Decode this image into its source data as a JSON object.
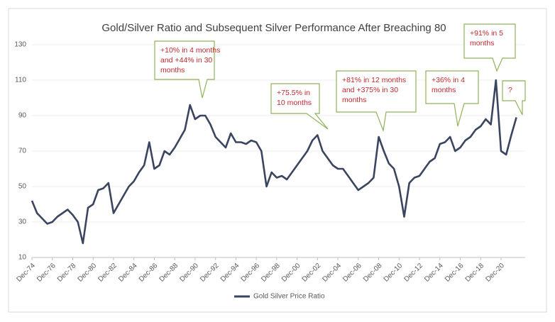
{
  "chart_data": {
    "type": "line",
    "title": "Gold/Silver Ratio and Subsequent Silver Performance After Breaching 80",
    "categories": [
      "Dec-74",
      null,
      null,
      null,
      "Dec-76",
      null,
      null,
      null,
      "Dec-78",
      null,
      null,
      null,
      "Dec-80",
      null,
      null,
      null,
      "Dec-82",
      null,
      null,
      null,
      "Dec-84",
      null,
      null,
      null,
      "Dec-86",
      null,
      null,
      null,
      "Dec-88",
      null,
      null,
      null,
      "Dec-90",
      null,
      null,
      null,
      "Dec-92",
      null,
      null,
      null,
      "Dec-94",
      null,
      null,
      null,
      "Dec-96",
      null,
      null,
      null,
      "Dec-98",
      null,
      null,
      null,
      "Dec-00",
      null,
      null,
      null,
      "Dec-02",
      null,
      null,
      null,
      "Dec-04",
      null,
      null,
      null,
      "Dec-06",
      null,
      null,
      null,
      "Dec-08",
      null,
      null,
      null,
      "Dec-10",
      null,
      null,
      null,
      "Dec-12",
      null,
      null,
      null,
      "Dec-14",
      null,
      null,
      null,
      "Dec-16",
      null,
      null,
      null,
      "Dec-18",
      null,
      null,
      null,
      "Dec-20",
      null,
      null,
      null
    ],
    "series": [
      {
        "name": "Gold Silver Price Ratio",
        "color": "#3b4560",
        "values": [
          42,
          35,
          32,
          29,
          30,
          33,
          35,
          37,
          34,
          30,
          18,
          38,
          40,
          48,
          49,
          52,
          35,
          40,
          45,
          50,
          53,
          58,
          62,
          75,
          60,
          62,
          70,
          68,
          72,
          77,
          82,
          96,
          88,
          90,
          90,
          85,
          78,
          75,
          72,
          80,
          75,
          75,
          74,
          76,
          75,
          70,
          50,
          58,
          55,
          56,
          54,
          58,
          62,
          66,
          70,
          76,
          79,
          70,
          66,
          62,
          60,
          60,
          56,
          52,
          48,
          50,
          52,
          55,
          78,
          70,
          63,
          60,
          50,
          33,
          52,
          55,
          56,
          60,
          64,
          66,
          74,
          75,
          78,
          70,
          72,
          76,
          78,
          82,
          84,
          88,
          85,
          110,
          70,
          68,
          79,
          89
        ]
      }
    ],
    "ylim": [
      10,
      130
    ],
    "yticks": [
      10,
      30,
      50,
      70,
      90,
      110,
      130
    ],
    "grid": true,
    "annotations": [
      {
        "lines": [
          "+10% in 4 months",
          "and +44% in 30",
          "months"
        ]
      },
      {
        "lines": [
          "+75.5% in",
          "10 months"
        ]
      },
      {
        "lines": [
          "+81% in 12 months",
          "and +375% in 30",
          "months"
        ]
      },
      {
        "lines": [
          "+36% in 4",
          "months"
        ]
      },
      {
        "lines": [
          "+91% in 5",
          "months"
        ]
      },
      {
        "lines": [
          "?"
        ]
      }
    ]
  }
}
